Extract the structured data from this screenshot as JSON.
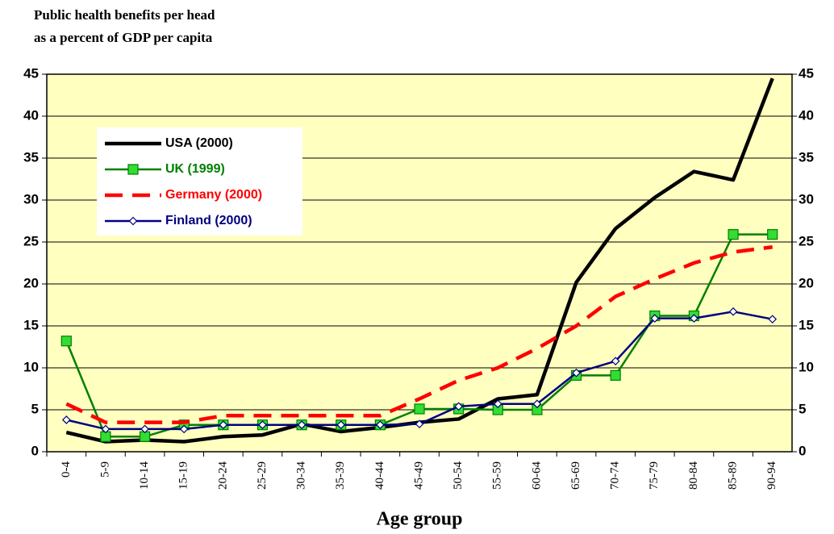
{
  "chart_data": {
    "type": "line",
    "title": [
      "Public health benefits per head",
      "as a percent of GDP per capita"
    ],
    "x_label": "Age group",
    "categories": [
      "0-4",
      "5-9",
      "10-14",
      "15-19",
      "20-24",
      "25-29",
      "30-34",
      "35-39",
      "40-44",
      "45-49",
      "50-54",
      "55-59",
      "60-64",
      "65-69",
      "70-74",
      "75-79",
      "80-84",
      "85-89",
      "90-94"
    ],
    "series": [
      {
        "name": "USA (2000)",
        "color": "#000000",
        "values": [
          2.3,
          1.2,
          1.4,
          1.2,
          1.8,
          2.0,
          3.3,
          2.4,
          2.9,
          3.5,
          3.9,
          6.3,
          6.8,
          20.2,
          26.6,
          30.3,
          33.4,
          32.4,
          44.5
        ]
      },
      {
        "name": "UK (1999)",
        "color": "#008000",
        "values": [
          13.2,
          1.8,
          1.8,
          3.2,
          3.2,
          3.2,
          3.2,
          3.2,
          3.2,
          5.1,
          5.1,
          5.0,
          5.0,
          9.1,
          9.1,
          16.2,
          16.2,
          25.9,
          25.9
        ]
      },
      {
        "name": "Germany (2000)",
        "color": "#ff0000",
        "values": [
          5.7,
          3.5,
          3.5,
          3.5,
          4.3,
          4.3,
          4.3,
          4.3,
          4.3,
          6.3,
          8.5,
          10.0,
          12.3,
          15.0,
          18.5,
          20.6,
          22.5,
          23.8,
          24.4
        ]
      },
      {
        "name": "Finland (2000)",
        "color": "#000080",
        "values": [
          3.8,
          2.7,
          2.7,
          2.7,
          3.2,
          3.2,
          3.2,
          3.2,
          3.2,
          3.3,
          5.4,
          5.7,
          5.7,
          9.4,
          10.8,
          15.9,
          15.9,
          16.7,
          15.8
        ]
      }
    ],
    "ylim": [
      0,
      45
    ],
    "yticks": [
      0,
      5,
      10,
      15,
      20,
      25,
      30,
      35,
      40,
      45
    ],
    "y2lim": [
      0,
      45
    ],
    "y2ticks": [
      0,
      5,
      10,
      15,
      20,
      25,
      30,
      35,
      40,
      45
    ],
    "grid": true,
    "legend": "upper left",
    "background": "#ffffc0"
  }
}
